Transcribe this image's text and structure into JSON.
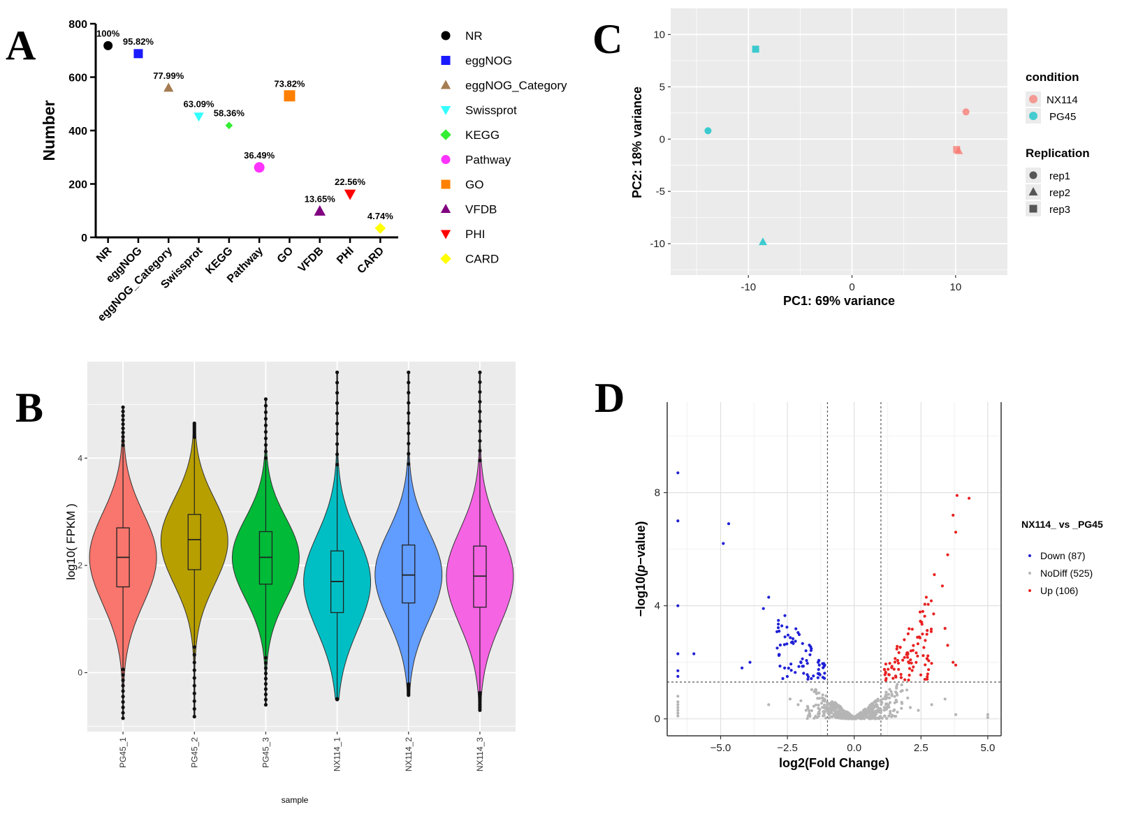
{
  "panels": {
    "a": "A",
    "b": "B",
    "c": "C",
    "d": "D"
  },
  "colors": {
    "nr": "#000000",
    "eggnog": "#1a1aff",
    "eggnog_category": "#a67c52",
    "swissprot": "#33ffff",
    "kegg": "#33ee33",
    "pathway": "#ff33ff",
    "go": "#ff8000",
    "vfdb": "#800080",
    "phi": "#ff0000",
    "card": "#ffff00",
    "pg45_1": "#f8766d",
    "pg45_2": "#b79f00",
    "pg45_3": "#00ba38",
    "nx114_1": "#00bfc4",
    "nx114_2": "#619cff",
    "nx114_3": "#f564e3",
    "nx114": "#f8766d",
    "pg45": "#00bfc4",
    "gg_panel": "#ebebeb",
    "down": "#1f1fd6",
    "nodiff": "#b5b5b5",
    "up": "#e82020"
  },
  "chart_data": [
    {
      "panel": "A",
      "type": "scatter",
      "title": "",
      "xlabel": "",
      "ylabel": "Number",
      "ylim": [
        0,
        800
      ],
      "yticks": [
        0,
        200,
        400,
        600,
        800
      ],
      "categories": [
        "NR",
        "eggNOG",
        "eggNOG_Category",
        "Swissprot",
        "KEGG",
        "Pathway",
        "GO",
        "VFDB",
        "PHI",
        "CARD"
      ],
      "values": [
        718,
        688,
        560,
        453,
        419,
        262,
        530,
        98,
        162,
        34
      ],
      "labels": [
        "100%",
        "95.82%",
        "77.99%",
        "63.09%",
        "58.36%",
        "36.49%",
        "73.82%",
        "13.65%",
        "22.56%",
        "4.74%"
      ],
      "legend": [
        "NR",
        "eggNOG",
        "eggNOG_Category",
        "Swissprot",
        "KEGG",
        "Pathway",
        "GO",
        "VFDB",
        "PHI",
        "CARD"
      ]
    },
    {
      "panel": "B",
      "type": "violin",
      "xlabel": "sample",
      "ylabel": "log10( FPKM )",
      "ylim": [
        -1.1,
        5.8
      ],
      "yticks": [
        0,
        2,
        4
      ],
      "categories": [
        "PG45_1",
        "PG45_2",
        "PG45_3",
        "NX114_1",
        "NX114_2",
        "NX114_3"
      ],
      "series": [
        {
          "name": "PG45_1",
          "min": -0.85,
          "q1": 1.6,
          "median": 2.15,
          "q3": 2.7,
          "max": 4.95
        },
        {
          "name": "PG45_2",
          "min": -0.82,
          "q1": 1.92,
          "median": 2.48,
          "q3": 2.95,
          "max": 4.65
        },
        {
          "name": "PG45_3",
          "min": -0.6,
          "q1": 1.65,
          "median": 2.15,
          "q3": 2.63,
          "max": 5.1
        },
        {
          "name": "NX114_1",
          "min": -0.5,
          "q1": 1.12,
          "median": 1.7,
          "q3": 2.27,
          "max": 5.6
        },
        {
          "name": "NX114_2",
          "min": -0.42,
          "q1": 1.3,
          "median": 1.82,
          "q3": 2.38,
          "max": 5.6
        },
        {
          "name": "NX114_3",
          "min": -0.7,
          "q1": 1.22,
          "median": 1.8,
          "q3": 2.36,
          "max": 5.6
        }
      ]
    },
    {
      "panel": "C",
      "type": "scatter",
      "title": "",
      "xlabel": "PC1: 69% variance",
      "ylabel": "PC2: 18% variance",
      "xlim": [
        -17.5,
        15
      ],
      "ylim": [
        -13,
        12.5
      ],
      "xticks": [
        -10,
        0,
        10
      ],
      "yticks": [
        -10,
        -5,
        0,
        5,
        10
      ],
      "legend_condition_title": "condition",
      "legend_condition": [
        "NX114",
        "PG45"
      ],
      "legend_replication_title": "Replication",
      "legend_replication": [
        "rep1",
        "rep2",
        "rep3"
      ],
      "points": [
        {
          "x": 11.0,
          "y": 2.6,
          "condition": "NX114",
          "rep": "rep1"
        },
        {
          "x": 10.3,
          "y": -1.1,
          "condition": "NX114",
          "rep": "rep2"
        },
        {
          "x": 10.1,
          "y": -1.0,
          "condition": "NX114",
          "rep": "rep3"
        },
        {
          "x": -13.9,
          "y": 0.8,
          "condition": "PG45",
          "rep": "rep1"
        },
        {
          "x": -8.6,
          "y": -9.8,
          "condition": "PG45",
          "rep": "rep2"
        },
        {
          "x": -9.3,
          "y": 8.6,
          "condition": "PG45",
          "rep": "rep3"
        }
      ]
    },
    {
      "panel": "D",
      "type": "scatter",
      "title": "",
      "xlabel": "log2(Fold Change)",
      "ylabel": "−log10(p−value)",
      "ylabel_prefix": "−log10(",
      "ylabel_italic": "p",
      "ylabel_suffix": "−value)",
      "xlim": [
        -7.0,
        5.5
      ],
      "ylim": [
        -0.6,
        11.2
      ],
      "xticks": [
        "−5.0",
        "−2.5",
        "0.0",
        "2.5",
        "5.0"
      ],
      "xtick_values": [
        -5,
        -2.5,
        0,
        2.5,
        5
      ],
      "yticks": [
        0,
        4,
        8
      ],
      "thresholds": {
        "x": [
          -1,
          1
        ],
        "y": 1.3
      },
      "legend_title": "NX114_ vs _PG45",
      "legend": [
        "Down (87)",
        "NoDiff (525)",
        "Up (106)"
      ],
      "counts": {
        "down": 87,
        "nodiff": 525,
        "up": 106
      }
    }
  ]
}
